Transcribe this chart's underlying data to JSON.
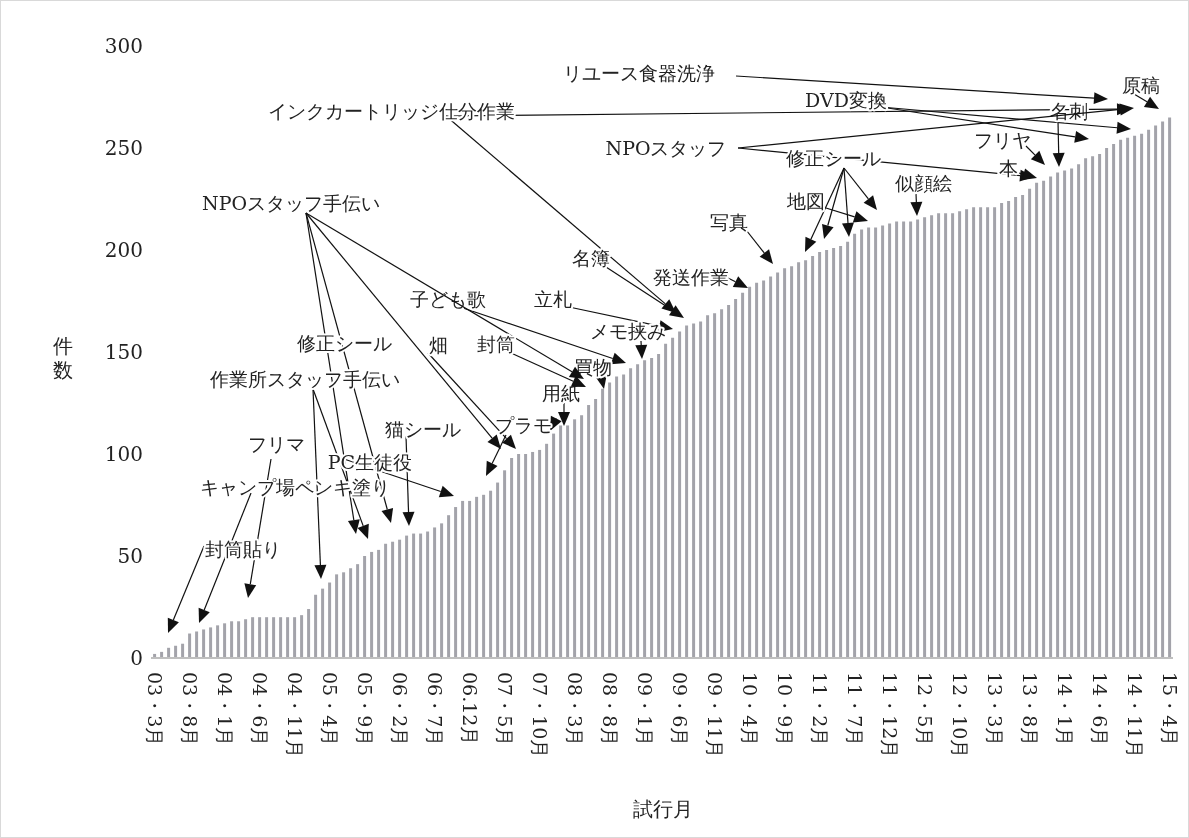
{
  "chart_data": {
    "type": "bar",
    "xlabel": "試行月",
    "ylabel": "件数",
    "categories": [
      "03・3月",
      null,
      null,
      null,
      null,
      "03・8月",
      null,
      null,
      null,
      null,
      "04・1月",
      null,
      null,
      null,
      null,
      "04・6月",
      null,
      null,
      null,
      null,
      "04・11月",
      null,
      null,
      null,
      null,
      "05・4月",
      null,
      null,
      null,
      null,
      "05・9月",
      null,
      null,
      null,
      null,
      "06・2月",
      null,
      null,
      null,
      null,
      "06・7月",
      null,
      null,
      null,
      null,
      "06.12月",
      null,
      null,
      null,
      null,
      "07・5月",
      null,
      null,
      null,
      null,
      "07・10月",
      null,
      null,
      null,
      null,
      "08・3月",
      null,
      null,
      null,
      null,
      "08・8月",
      null,
      null,
      null,
      null,
      "09・1月",
      null,
      null,
      null,
      null,
      "09・6月",
      null,
      null,
      null,
      null,
      "09・11月",
      null,
      null,
      null,
      null,
      "10・4月",
      null,
      null,
      null,
      null,
      "10・9月",
      null,
      null,
      null,
      null,
      "11・2月",
      null,
      null,
      null,
      null,
      "11・7月",
      null,
      null,
      null,
      null,
      "11・12月",
      null,
      null,
      null,
      null,
      "12・5月",
      null,
      null,
      null,
      null,
      "12・10月",
      null,
      null,
      null,
      null,
      "13・3月",
      null,
      null,
      null,
      null,
      "13・8月",
      null,
      null,
      null,
      null,
      "14・1月",
      null,
      null,
      null,
      null,
      "14・6月",
      null,
      null,
      null,
      null,
      "14・11月",
      null,
      null,
      null,
      null,
      "15・4月"
    ],
    "values": [
      2,
      3,
      5,
      6,
      7,
      12,
      13,
      14,
      15,
      16,
      17,
      18,
      18,
      19,
      20,
      20,
      20,
      20,
      20,
      20,
      20,
      21,
      24,
      31,
      34,
      37,
      41,
      42,
      44,
      46,
      50,
      52,
      53,
      56,
      57,
      58,
      60,
      61,
      61,
      62,
      64,
      66,
      70,
      74,
      77,
      77,
      79,
      80,
      82,
      86,
      92,
      98,
      100,
      100,
      101,
      102,
      105,
      110,
      114,
      114,
      117,
      119,
      124,
      127,
      132,
      135,
      138,
      139,
      142,
      144,
      146,
      147,
      149,
      154,
      157,
      160,
      163,
      164,
      165,
      168,
      169,
      171,
      173,
      176,
      179,
      182,
      184,
      185,
      187,
      189,
      191,
      192,
      194,
      195,
      197,
      199,
      200,
      201,
      202,
      204,
      208,
      210,
      211,
      211,
      212,
      213,
      214,
      214,
      214,
      215,
      216,
      217,
      218,
      218,
      218,
      219,
      220,
      221,
      221,
      221,
      221,
      223,
      224,
      226,
      227,
      230,
      233,
      234,
      236,
      238,
      239,
      240,
      242,
      245,
      246,
      247,
      250,
      252,
      254,
      255,
      256,
      257,
      259,
      261,
      263,
      265
    ],
    "color": "#a3a3aa",
    "ylim": [
      0,
      300
    ],
    "yticks": [
      0,
      50,
      100,
      150,
      200,
      250,
      300
    ],
    "annotations": [
      "リユース食器洗浄",
      "インクカートリッジ仕分作業",
      "DVD変換",
      "原稿",
      "名刺",
      "NPOスタッフ",
      "修正シール",
      "地図",
      "似顔絵",
      "フリヤ",
      "本",
      "写真",
      "発送作業",
      "名簿",
      "立札",
      "メモ挟み",
      "子ども歌",
      "買物",
      "用紙",
      "NPOスタッフ手伝い",
      "作業所スタッフ手伝い",
      "修正シール",
      "畑",
      "封筒",
      "プラモ",
      "猫シール",
      "PC生徒役",
      "フリマ",
      "キャンプ場ペンキ塗り",
      "封筒貼り"
    ]
  }
}
